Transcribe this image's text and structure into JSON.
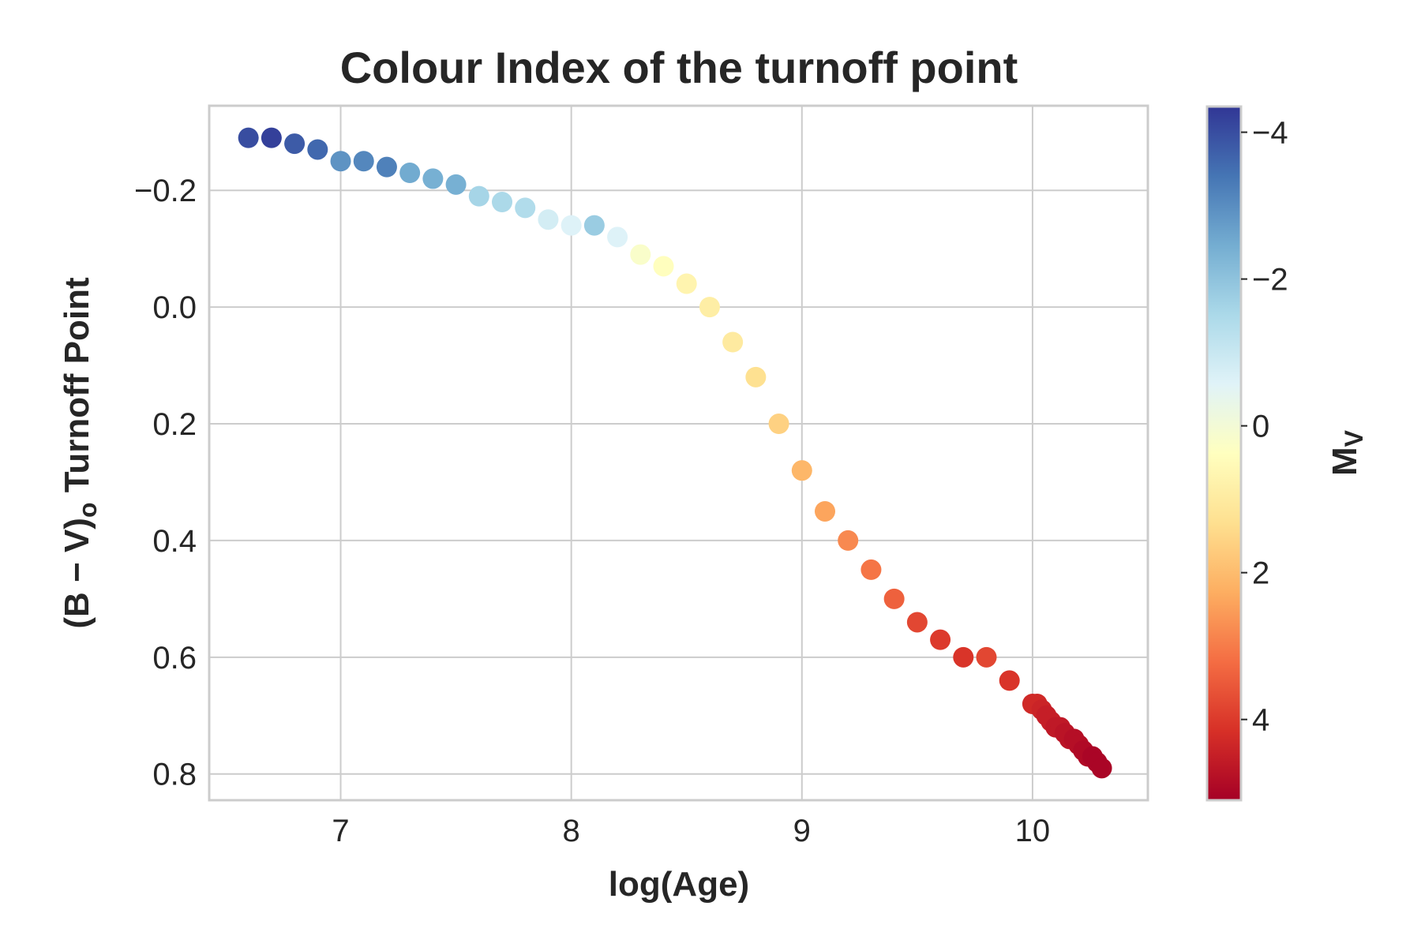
{
  "chart_data": {
    "type": "scatter",
    "title": "Colour Index of the turnoff point",
    "xlabel": "log(Age)",
    "ylabel_main": "(B − V)",
    "ylabel_sub": "o",
    "ylabel_rest": " Turnoff Point",
    "xlim": [
      6.43,
      10.5
    ],
    "ylim": [
      0.845,
      -0.345
    ],
    "y_inverted": true,
    "grid": true,
    "x_ticks": [
      {
        "value": 7,
        "label": "7"
      },
      {
        "value": 8,
        "label": "8"
      },
      {
        "value": 9,
        "label": "9"
      },
      {
        "value": 10,
        "label": "10"
      }
    ],
    "y_ticks": [
      {
        "value": -0.2,
        "label": "−0.2"
      },
      {
        "value": 0.0,
        "label": "0.0"
      },
      {
        "value": 0.2,
        "label": "0.2"
      },
      {
        "value": 0.4,
        "label": "0.4"
      },
      {
        "value": 0.6,
        "label": "0.6"
      },
      {
        "value": 0.8,
        "label": "0.8"
      }
    ],
    "colorbar": {
      "label_main": "M",
      "label_sub": "V",
      "colormap": "RdYlBu",
      "vmin": -4.35,
      "vmax": 5.1,
      "inverted": true,
      "ticks": [
        {
          "value": -4,
          "label": "−4"
        },
        {
          "value": -2,
          "label": "−2"
        },
        {
          "value": 0,
          "label": "0"
        },
        {
          "value": 2,
          "label": "2"
        },
        {
          "value": 4,
          "label": "4"
        }
      ],
      "stops": [
        "#a50026",
        "#d73027",
        "#f46d43",
        "#fdae61",
        "#fee090",
        "#ffffbf",
        "#e0f3f8",
        "#abd9e9",
        "#74add1",
        "#4575b4",
        "#313695"
      ]
    },
    "points": [
      {
        "x": 6.6,
        "y": -0.29,
        "mv": -4.0
      },
      {
        "x": 6.7,
        "y": -0.29,
        "mv": -4.2
      },
      {
        "x": 6.8,
        "y": -0.28,
        "mv": -3.8
      },
      {
        "x": 6.9,
        "y": -0.27,
        "mv": -3.6
      },
      {
        "x": 7.0,
        "y": -0.25,
        "mv": -2.9
      },
      {
        "x": 7.1,
        "y": -0.25,
        "mv": -3.1
      },
      {
        "x": 7.2,
        "y": -0.24,
        "mv": -3.2
      },
      {
        "x": 7.3,
        "y": -0.23,
        "mv": -2.5
      },
      {
        "x": 7.4,
        "y": -0.22,
        "mv": -2.4
      },
      {
        "x": 7.5,
        "y": -0.21,
        "mv": -2.4
      },
      {
        "x": 7.6,
        "y": -0.19,
        "mv": -1.6
      },
      {
        "x": 7.7,
        "y": -0.18,
        "mv": -1.5
      },
      {
        "x": 7.8,
        "y": -0.17,
        "mv": -1.4
      },
      {
        "x": 7.9,
        "y": -0.15,
        "mv": -0.8
      },
      {
        "x": 8.0,
        "y": -0.14,
        "mv": -0.6
      },
      {
        "x": 8.1,
        "y": -0.14,
        "mv": -1.8
      },
      {
        "x": 8.2,
        "y": -0.12,
        "mv": -0.6
      },
      {
        "x": 8.3,
        "y": -0.09,
        "mv": 0.2
      },
      {
        "x": 8.4,
        "y": -0.07,
        "mv": 0.4
      },
      {
        "x": 8.5,
        "y": -0.04,
        "mv": 0.7
      },
      {
        "x": 8.6,
        "y": 0.0,
        "mv": 0.9
      },
      {
        "x": 8.7,
        "y": 0.06,
        "mv": 1.0
      },
      {
        "x": 8.8,
        "y": 0.12,
        "mv": 1.3
      },
      {
        "x": 8.9,
        "y": 0.2,
        "mv": 1.6
      },
      {
        "x": 9.0,
        "y": 0.28,
        "mv": 2.1
      },
      {
        "x": 9.1,
        "y": 0.35,
        "mv": 2.4
      },
      {
        "x": 9.2,
        "y": 0.4,
        "mv": 2.8
      },
      {
        "x": 9.3,
        "y": 0.45,
        "mv": 3.1
      },
      {
        "x": 9.4,
        "y": 0.5,
        "mv": 3.4
      },
      {
        "x": 9.5,
        "y": 0.54,
        "mv": 3.8
      },
      {
        "x": 9.6,
        "y": 0.57,
        "mv": 4.0
      },
      {
        "x": 9.7,
        "y": 0.6,
        "mv": 4.1
      },
      {
        "x": 9.8,
        "y": 0.6,
        "mv": 3.8
      },
      {
        "x": 9.9,
        "y": 0.64,
        "mv": 4.1
      },
      {
        "x": 10.0,
        "y": 0.68,
        "mv": 4.3
      },
      {
        "x": 10.02,
        "y": 0.68,
        "mv": 4.3
      },
      {
        "x": 10.04,
        "y": 0.69,
        "mv": 4.4
      },
      {
        "x": 10.06,
        "y": 0.7,
        "mv": 4.5
      },
      {
        "x": 10.08,
        "y": 0.71,
        "mv": 4.5
      },
      {
        "x": 10.1,
        "y": 0.72,
        "mv": 4.6
      },
      {
        "x": 10.12,
        "y": 0.72,
        "mv": 4.6
      },
      {
        "x": 10.14,
        "y": 0.73,
        "mv": 4.7
      },
      {
        "x": 10.16,
        "y": 0.74,
        "mv": 4.7
      },
      {
        "x": 10.18,
        "y": 0.74,
        "mv": 4.8
      },
      {
        "x": 10.2,
        "y": 0.75,
        "mv": 4.8
      },
      {
        "x": 10.22,
        "y": 0.76,
        "mv": 4.9
      },
      {
        "x": 10.24,
        "y": 0.77,
        "mv": 4.9
      },
      {
        "x": 10.26,
        "y": 0.77,
        "mv": 5.0
      },
      {
        "x": 10.28,
        "y": 0.78,
        "mv": 5.0
      },
      {
        "x": 10.3,
        "y": 0.79,
        "mv": 5.0
      }
    ]
  }
}
